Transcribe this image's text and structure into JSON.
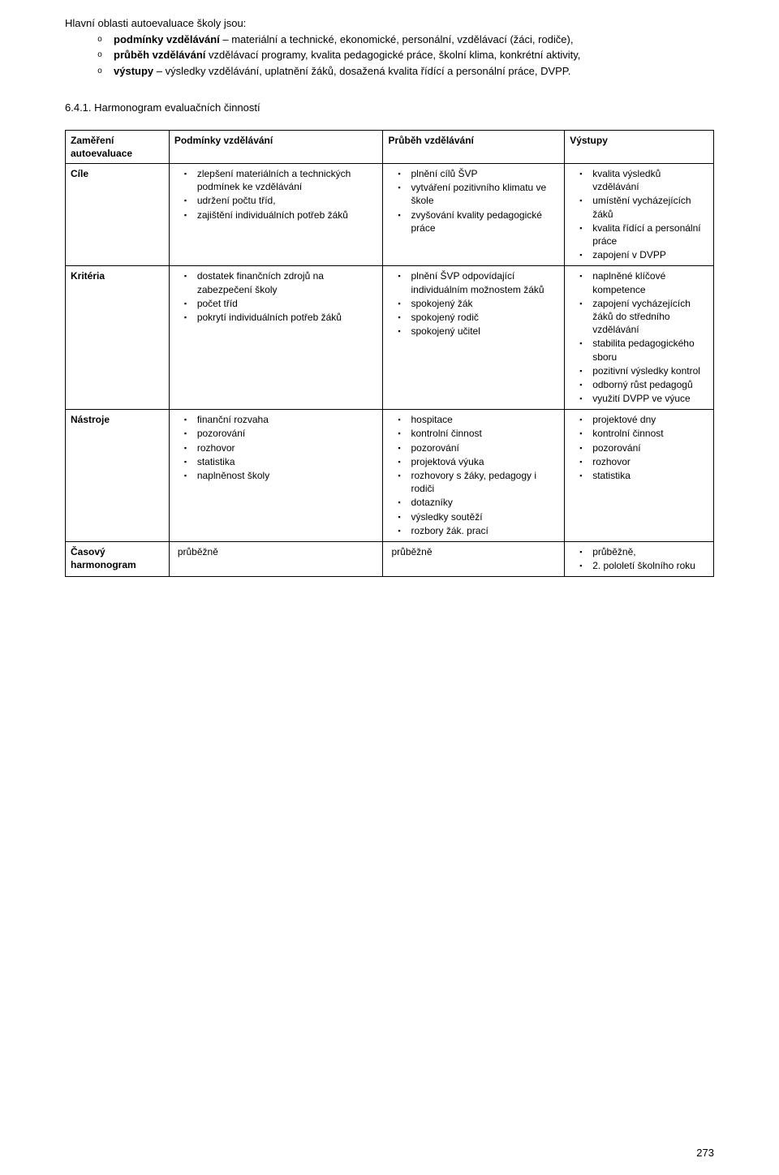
{
  "intro": {
    "lead": "Hlavní oblasti autoevaluace školy jsou:",
    "items": [
      {
        "bold": "podmínky vzdělávání",
        "rest": " – materiální a technické, ekonomické, personální, vzdělávací (žáci, rodiče),"
      },
      {
        "bold": "průběh vzdělávání",
        "rest": " vzdělávací programy, kvalita pedagogické práce, školní klima, konkrétní aktivity,"
      },
      {
        "bold": "výstupy",
        "rest": " – výsledky vzdělávání, uplatnění žáků, dosažená kvalita řídící a personální práce, DVPP."
      }
    ]
  },
  "section_heading": "6.4.1. Harmonogram evaluačních činností",
  "table": {
    "header": [
      "Zaměření autoevaluace",
      "Podmínky vzdělávání",
      "Průběh vzdělávání",
      "Výstupy"
    ],
    "rows": [
      {
        "label": "Cíle",
        "c2": [
          "zlepšení materiálních a technických podmínek ke vzdělávání",
          "udržení počtu tříd,",
          "zajištění individuálních potřeb žáků"
        ],
        "c3": [
          "plnění cílů ŠVP",
          "vytváření pozitivního klimatu ve škole",
          "zvyšování kvality pedagogické práce"
        ],
        "c4": [
          "kvalita výsledků vzdělávání",
          "umístění vycházejících žáků",
          "kvalita řídící a personální práce",
          "zapojení v DVPP"
        ]
      },
      {
        "label": "Kritéria",
        "c2": [
          "dostatek finančních zdrojů na zabezpečení školy",
          "počet tříd",
          "pokrytí individuálních potřeb žáků"
        ],
        "c3": [
          "plnění ŠVP odpovídající individuálním možnostem žáků",
          "spokojený žák",
          "spokojený rodič",
          "spokojený učitel"
        ],
        "c4": [
          "naplněné klíčové kompetence",
          "zapojení vycházejících žáků do středního vzdělávání",
          "stabilita pedagogického sboru",
          "pozitivní výsledky kontrol",
          "odborný růst pedagogů",
          "využití DVPP ve výuce"
        ]
      },
      {
        "label": "Nástroje",
        "c2": [
          "finanční rozvaha",
          "pozorování",
          "rozhovor",
          "statistika",
          "naplněnost školy"
        ],
        "c3": [
          "hospitace",
          "kontrolní činnost",
          "pozorování",
          "projektová výuka",
          "rozhovory s žáky, pedagogy i rodiči",
          "dotazníky",
          "výsledky soutěží",
          "rozbory žák. prací"
        ],
        "c4": [
          "projektové dny",
          "kontrolní činnost",
          "pozorování",
          "rozhovor",
          "statistika"
        ]
      },
      {
        "label": "Časový harmonogram",
        "c2_plain": "průběžně",
        "c3_plain": "průběžně",
        "c4": [
          "průběžně,",
          "2. pololetí školního roku"
        ]
      }
    ]
  },
  "page_number": "273"
}
